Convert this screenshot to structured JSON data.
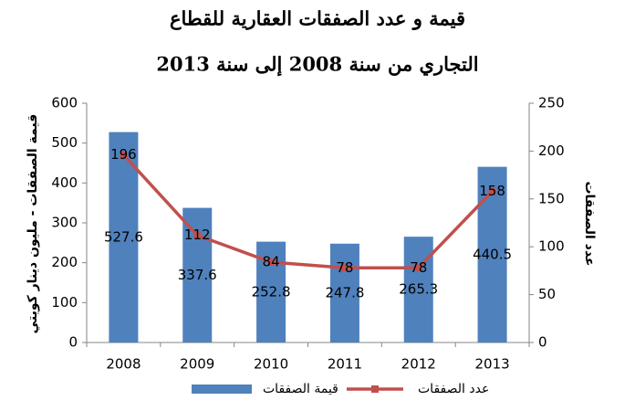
{
  "chart_data": {
    "type": "bar",
    "title": [
      "قيمة و عدد الصفقات العقارية للقطاع",
      "التجاري من سنة 2008 إلى سنة 2013"
    ],
    "y_label": "قيمة الصفقات - مليون دينار كويتي",
    "y2_label": "عدد الصفقات",
    "categories": [
      "2008",
      "2009",
      "2010",
      "2011",
      "2012",
      "2013"
    ],
    "series": [
      {
        "name": "قيمة الصفقات",
        "type": "bar",
        "color": "#4f81bd",
        "values": [
          527.6,
          337.6,
          252.8,
          247.8,
          265.3,
          440.5
        ]
      },
      {
        "name": "عدد الصفقات",
        "type": "line",
        "axis": "y2",
        "color": "#c0504d",
        "values": [
          196,
          112,
          84,
          78,
          78,
          158
        ]
      }
    ],
    "ylim": [
      0,
      600
    ],
    "yticks": [
      0,
      100,
      200,
      300,
      400,
      500,
      600
    ],
    "y2lim": [
      0,
      250
    ],
    "y2ticks": [
      0,
      50,
      100,
      150,
      200,
      250
    ],
    "grid": false,
    "legend": "bottom"
  }
}
